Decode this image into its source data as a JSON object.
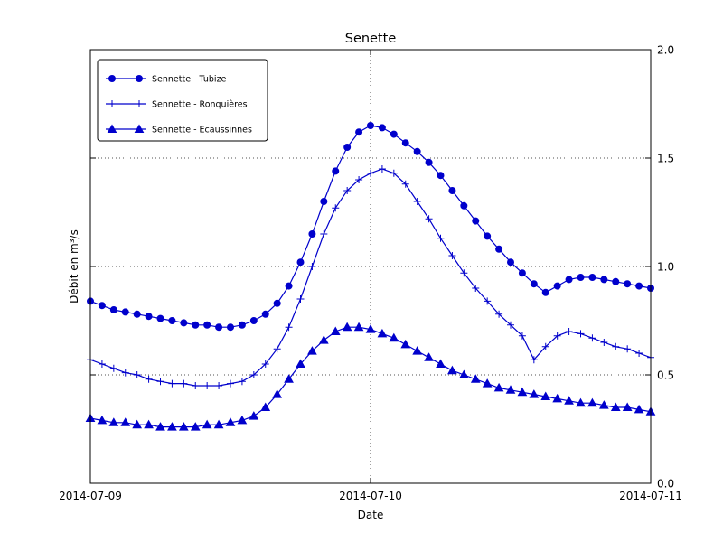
{
  "chart_data": {
    "type": "line",
    "title": "Senette",
    "xlabel": "Date",
    "ylabel": "Débit en m³/s",
    "ylim": [
      0.0,
      2.0
    ],
    "grid": {
      "on": true,
      "y_values": [
        0.5,
        1.0,
        1.5
      ],
      "x_hours": [
        24
      ]
    },
    "legend_position": "upper left",
    "x_start": "2014-07-09",
    "x_interval_hours": 1,
    "xtick_hours": [
      0,
      24,
      48
    ],
    "xtick_labels": [
      "2014-07-09",
      "2014-07-10",
      "2014-07-11"
    ],
    "ytick_values": [
      0.0,
      0.5,
      1.0,
      1.5,
      2.0
    ],
    "ytick_labels": [
      "0.0",
      "0.5",
      "1.0",
      "1.5",
      "2.0"
    ],
    "line_color": "#0000cc",
    "series": [
      {
        "name": "Sennette - Tubize",
        "marker": "circle",
        "color": "#0000cc",
        "values": [
          0.84,
          0.82,
          0.8,
          0.79,
          0.78,
          0.77,
          0.76,
          0.75,
          0.74,
          0.73,
          0.73,
          0.72,
          0.72,
          0.73,
          0.75,
          0.78,
          0.83,
          0.91,
          1.02,
          1.15,
          1.3,
          1.44,
          1.55,
          1.62,
          1.65,
          1.64,
          1.61,
          1.57,
          1.53,
          1.48,
          1.42,
          1.35,
          1.28,
          1.21,
          1.14,
          1.08,
          1.02,
          0.97,
          0.92,
          0.88,
          0.91,
          0.94,
          0.95,
          0.95,
          0.94,
          0.93,
          0.92,
          0.91,
          0.9
        ]
      },
      {
        "name": "Sennette - Ronquières",
        "marker": "plus",
        "color": "#0000cc",
        "values": [
          0.57,
          0.55,
          0.53,
          0.51,
          0.5,
          0.48,
          0.47,
          0.46,
          0.46,
          0.45,
          0.45,
          0.45,
          0.46,
          0.47,
          0.5,
          0.55,
          0.62,
          0.72,
          0.85,
          1.0,
          1.15,
          1.27,
          1.35,
          1.4,
          1.43,
          1.45,
          1.43,
          1.38,
          1.3,
          1.22,
          1.13,
          1.05,
          0.97,
          0.9,
          0.84,
          0.78,
          0.73,
          0.68,
          0.57,
          0.63,
          0.68,
          0.7,
          0.69,
          0.67,
          0.65,
          0.63,
          0.62,
          0.6,
          0.58
        ]
      },
      {
        "name": "Sennette - Ecaussinnes",
        "marker": "triangle-up",
        "color": "#0000cc",
        "values": [
          0.3,
          0.29,
          0.28,
          0.28,
          0.27,
          0.27,
          0.26,
          0.26,
          0.26,
          0.26,
          0.27,
          0.27,
          0.28,
          0.29,
          0.31,
          0.35,
          0.41,
          0.48,
          0.55,
          0.61,
          0.66,
          0.7,
          0.72,
          0.72,
          0.71,
          0.69,
          0.67,
          0.64,
          0.61,
          0.58,
          0.55,
          0.52,
          0.5,
          0.48,
          0.46,
          0.44,
          0.43,
          0.42,
          0.41,
          0.4,
          0.39,
          0.38,
          0.37,
          0.37,
          0.36,
          0.35,
          0.35,
          0.34,
          0.33
        ]
      }
    ]
  }
}
